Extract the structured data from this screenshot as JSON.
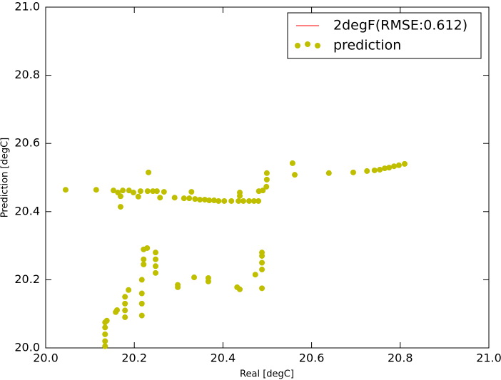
{
  "chart_data": {
    "type": "scatter",
    "xlabel": "Real [degC]",
    "ylabel": "Prediction [degC]",
    "xlim": [
      20.0,
      21.0
    ],
    "ylim": [
      20.0,
      21.0
    ],
    "xticks": [
      {
        "value": 20.0,
        "label": "20.0"
      },
      {
        "value": 20.2,
        "label": "20.2"
      },
      {
        "value": 20.4,
        "label": "20.4"
      },
      {
        "value": 20.6,
        "label": "20.6"
      },
      {
        "value": 20.8,
        "label": "20.8"
      },
      {
        "value": 21.0,
        "label": "21.0"
      }
    ],
    "yticks": [
      {
        "value": 20.0,
        "label": "20.0"
      },
      {
        "value": 20.2,
        "label": "20.2"
      },
      {
        "value": 20.4,
        "label": "20.4"
      },
      {
        "value": 20.6,
        "label": "20.6"
      },
      {
        "value": 20.8,
        "label": "20.8"
      },
      {
        "value": 21.0,
        "label": "21.0"
      }
    ],
    "grid": false,
    "legend": "upper right",
    "series": [
      {
        "name": "2degF(RMSE:0.612)",
        "color": "#ff0000",
        "style": "line",
        "x": [],
        "y": []
      },
      {
        "name": "prediction",
        "color": "#bfbf00",
        "style": "marker",
        "x": [
          20.045,
          20.114,
          20.153,
          20.163,
          20.169,
          20.169,
          20.174,
          20.188,
          20.198,
          20.209,
          20.214,
          20.23,
          20.232,
          20.242,
          20.251,
          20.258,
          20.267,
          20.291,
          20.312,
          20.324,
          20.329,
          20.337,
          20.348,
          20.359,
          20.369,
          20.38,
          20.39,
          20.403,
          20.419,
          20.435,
          20.438,
          20.438,
          20.446,
          20.459,
          20.47,
          20.48,
          20.481,
          20.49,
          20.498,
          20.499,
          20.499,
          20.557,
          20.562,
          20.639,
          20.694,
          20.725,
          20.742,
          20.754,
          20.765,
          20.775,
          20.786,
          20.797,
          20.81,
          20.134,
          20.134,
          20.134,
          20.134,
          20.134,
          20.138,
          20.158,
          20.161,
          20.179,
          20.179,
          20.179,
          20.179,
          20.187,
          20.217,
          20.217,
          20.217,
          20.217,
          20.221,
          20.221,
          20.221,
          20.229,
          20.248,
          20.248,
          20.248,
          20.248,
          20.298,
          20.298,
          20.335,
          20.367,
          20.367,
          20.432,
          20.438,
          20.473,
          20.488,
          20.488,
          20.488,
          20.488,
          20.488
        ],
        "y": [
          20.464,
          20.464,
          20.462,
          20.456,
          20.445,
          20.414,
          20.462,
          20.462,
          20.456,
          20.444,
          20.46,
          20.46,
          20.515,
          20.46,
          20.46,
          20.441,
          20.458,
          20.441,
          20.439,
          20.439,
          20.458,
          20.437,
          20.435,
          20.435,
          20.433,
          20.433,
          20.431,
          20.431,
          20.431,
          20.431,
          20.456,
          20.446,
          20.431,
          20.431,
          20.431,
          20.431,
          20.46,
          20.462,
          20.473,
          20.513,
          20.494,
          20.542,
          20.508,
          20.513,
          20.515,
          20.519,
          20.521,
          20.523,
          20.527,
          20.529,
          20.533,
          20.536,
          20.54,
          20.005,
          20.02,
          20.04,
          20.06,
          20.075,
          20.08,
          20.105,
          20.111,
          20.09,
          20.11,
          20.13,
          20.15,
          20.17,
          20.095,
          20.13,
          20.16,
          20.2,
          20.289,
          20.26,
          20.245,
          20.293,
          20.22,
          20.24,
          20.26,
          20.28,
          20.185,
          20.178,
          20.207,
          20.205,
          20.195,
          20.178,
          20.172,
          20.215,
          20.23,
          20.25,
          20.27,
          20.28,
          20.175
        ]
      }
    ]
  }
}
